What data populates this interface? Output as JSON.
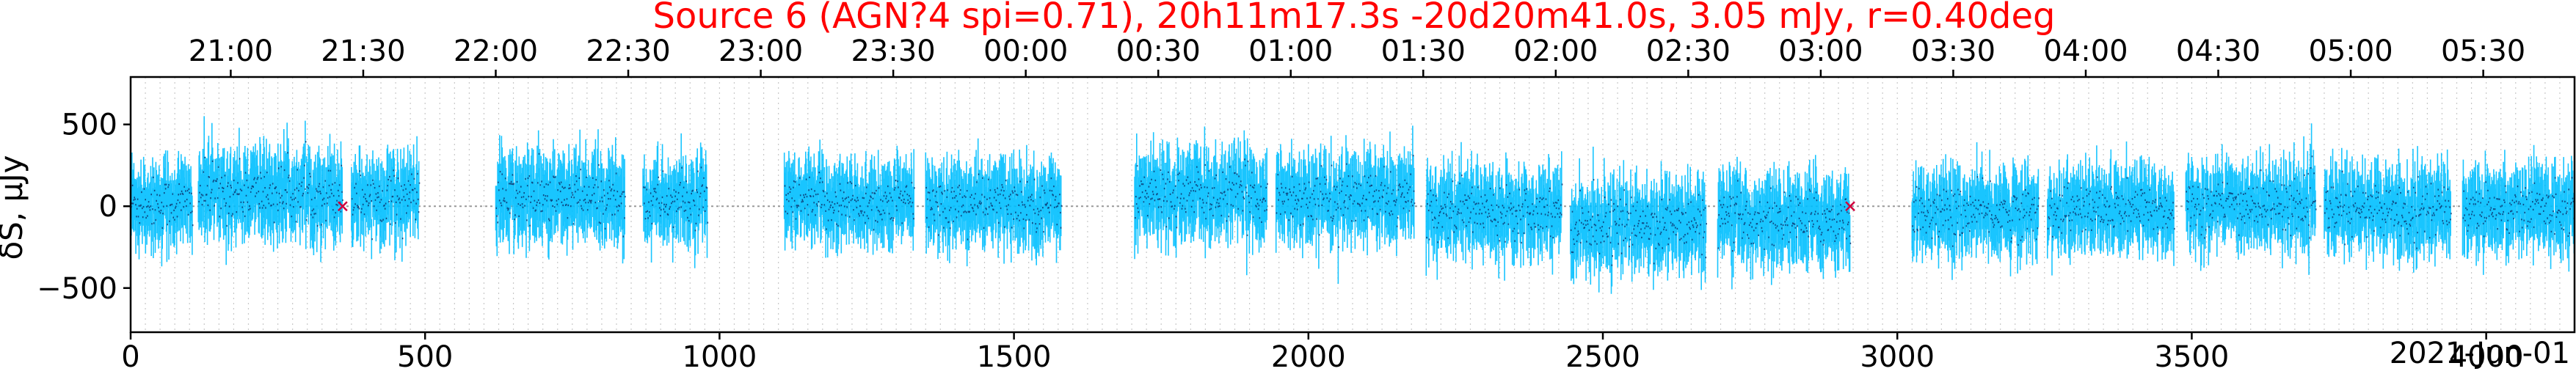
{
  "chart_data": {
    "type": "scatter",
    "title": "Source 6 (AGN?4 spi=0.71), 20h11m17.3s -20d20m41.0s, 3.05 mJy, r=0.40deg",
    "ylabel": "δS, μJy",
    "xlabel": "",
    "date_label": "2021-Jun-01",
    "xlim": [
      0,
      4150
    ],
    "ylim": [
      -770,
      790
    ],
    "xticks": [
      0,
      500,
      1000,
      1500,
      2000,
      2500,
      3000,
      3500,
      4000
    ],
    "yticks": [
      -500,
      0,
      500
    ],
    "top_ticks": [
      {
        "x": 170,
        "label": "21:00"
      },
      {
        "x": 395,
        "label": "21:30"
      },
      {
        "x": 620,
        "label": "22:00"
      },
      {
        "x": 845,
        "label": "22:30"
      },
      {
        "x": 1070,
        "label": "23:00"
      },
      {
        "x": 1295,
        "label": "23:30"
      },
      {
        "x": 1520,
        "label": "00:00"
      },
      {
        "x": 1745,
        "label": "00:30"
      },
      {
        "x": 1970,
        "label": "01:00"
      },
      {
        "x": 2195,
        "label": "01:30"
      },
      {
        "x": 2420,
        "label": "02:00"
      },
      {
        "x": 2645,
        "label": "02:30"
      },
      {
        "x": 2870,
        "label": "03:00"
      },
      {
        "x": 3095,
        "label": "03:30"
      },
      {
        "x": 3320,
        "label": "04:00"
      },
      {
        "x": 3545,
        "label": "04:30"
      },
      {
        "x": 3770,
        "label": "05:00"
      },
      {
        "x": 3995,
        "label": "05:30"
      }
    ],
    "scans": [
      {
        "x0": 0,
        "x1": 105,
        "mean": 20,
        "sigma": 140
      },
      {
        "x0": 115,
        "x1": 360,
        "mean": 80,
        "sigma": 150
      },
      {
        "x0": 375,
        "x1": 490,
        "mean": 60,
        "sigma": 140
      },
      {
        "x0": 620,
        "x1": 840,
        "mean": 50,
        "sigma": 150
      },
      {
        "x0": 870,
        "x1": 980,
        "mean": 30,
        "sigma": 140
      },
      {
        "x0": 1110,
        "x1": 1330,
        "mean": 20,
        "sigma": 140
      },
      {
        "x0": 1350,
        "x1": 1580,
        "mean": 15,
        "sigma": 140
      },
      {
        "x0": 1705,
        "x1": 1930,
        "mean": 70,
        "sigma": 150
      },
      {
        "x0": 1945,
        "x1": 2180,
        "mean": 50,
        "sigma": 145
      },
      {
        "x0": 2200,
        "x1": 2430,
        "mean": -20,
        "sigma": 140
      },
      {
        "x0": 2445,
        "x1": 2675,
        "mean": -110,
        "sigma": 145
      },
      {
        "x0": 2695,
        "x1": 2920,
        "mean": -80,
        "sigma": 150
      },
      {
        "x0": 3025,
        "x1": 3240,
        "mean": -40,
        "sigma": 140
      },
      {
        "x0": 3255,
        "x1": 3470,
        "mean": -20,
        "sigma": 140
      },
      {
        "x0": 3490,
        "x1": 3710,
        "mean": 10,
        "sigma": 140
      },
      {
        "x0": 3725,
        "x1": 3940,
        "mean": -20,
        "sigma": 145
      },
      {
        "x0": 3960,
        "x1": 4150,
        "mean": -10,
        "sigma": 140
      }
    ],
    "markers": [
      {
        "x": 360,
        "y": 0,
        "symbol": "x"
      },
      {
        "x": 2920,
        "y": 0,
        "symbol": "x"
      }
    ],
    "zero_line": true,
    "grid": "vertical-dotted",
    "colors": {
      "title": "#ff0000",
      "errorbar": "#00bfff",
      "points": "#0a2a66",
      "zero_line": "#9a9a9a",
      "grid": "#c8c8c8",
      "marker": "#d0003c"
    }
  }
}
